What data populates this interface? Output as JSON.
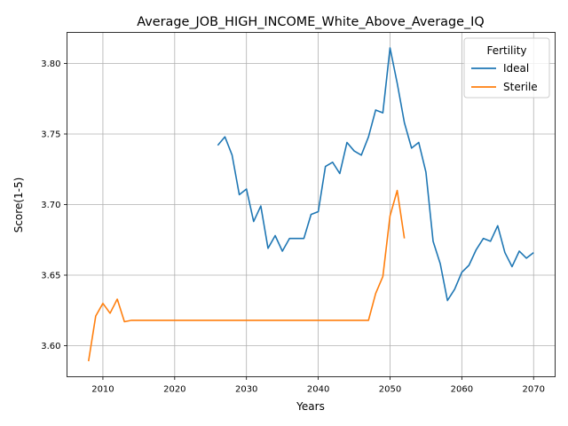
{
  "chart_data": {
    "type": "line",
    "title": "Average_JOB_HIGH_INCOME_White_Above_Average_IQ",
    "xlabel": "Years",
    "ylabel": "Score(1-5)",
    "xlim": [
      2005,
      2073
    ],
    "ylim": [
      3.578,
      3.822
    ],
    "xticks": [
      2010,
      2020,
      2030,
      2040,
      2050,
      2060,
      2070
    ],
    "yticks": [
      3.6,
      3.65,
      3.7,
      3.75,
      3.8
    ],
    "ytick_labels": [
      "3.60",
      "3.65",
      "3.70",
      "3.75",
      "3.80"
    ],
    "grid": true,
    "legend": {
      "title": "Fertility",
      "placement": "top-right"
    },
    "series": [
      {
        "name": "Ideal",
        "color": "#1f77b4",
        "x": [
          2026,
          2027,
          2028,
          2029,
          2030,
          2031,
          2032,
          2033,
          2034,
          2035,
          2036,
          2037,
          2038,
          2039,
          2040,
          2041,
          2042,
          2043,
          2044,
          2045,
          2046,
          2047,
          2048,
          2049,
          2050,
          2051,
          2052,
          2053,
          2054,
          2055,
          2056,
          2057,
          2058,
          2059,
          2060,
          2061,
          2062,
          2063,
          2064,
          2065,
          2066,
          2067,
          2068,
          2069,
          2070
        ],
        "y": [
          3.742,
          3.748,
          3.735,
          3.707,
          3.711,
          3.688,
          3.699,
          3.669,
          3.678,
          3.667,
          3.676,
          3.676,
          3.676,
          3.693,
          3.695,
          3.727,
          3.73,
          3.722,
          3.744,
          3.738,
          3.735,
          3.748,
          3.767,
          3.765,
          3.811,
          3.786,
          3.758,
          3.74,
          3.744,
          3.723,
          3.674,
          3.658,
          3.632,
          3.64,
          3.652,
          3.657,
          3.668,
          3.676,
          3.674,
          3.685,
          3.666,
          3.656,
          3.667,
          3.662,
          3.666
        ]
      },
      {
        "name": "Sterile",
        "color": "#ff7f0e",
        "x": [
          2008,
          2009,
          2010,
          2011,
          2012,
          2013,
          2014,
          2015,
          2016,
          2017,
          2018,
          2019,
          2020,
          2021,
          2022,
          2023,
          2024,
          2025,
          2026,
          2027,
          2028,
          2029,
          2030,
          2031,
          2032,
          2033,
          2034,
          2035,
          2036,
          2037,
          2038,
          2039,
          2040,
          2041,
          2042,
          2043,
          2044,
          2045,
          2046,
          2047,
          2048,
          2049,
          2050,
          2051,
          2052
        ],
        "y": [
          3.589,
          3.621,
          3.63,
          3.623,
          3.633,
          3.617,
          3.618,
          3.618,
          3.618,
          3.618,
          3.618,
          3.618,
          3.618,
          3.618,
          3.618,
          3.618,
          3.618,
          3.618,
          3.618,
          3.618,
          3.618,
          3.618,
          3.618,
          3.618,
          3.618,
          3.618,
          3.618,
          3.618,
          3.618,
          3.618,
          3.618,
          3.618,
          3.618,
          3.618,
          3.618,
          3.618,
          3.618,
          3.618,
          3.618,
          3.618,
          3.637,
          3.649,
          3.692,
          3.71,
          3.676
        ]
      }
    ]
  }
}
